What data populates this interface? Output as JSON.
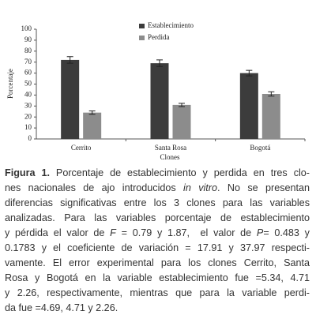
{
  "chart_data": {
    "type": "bar",
    "y_label": "Porcentaje",
    "x_label": "Clones",
    "categories": [
      "Cerrito",
      "Santa Rosa",
      "Bogotá"
    ],
    "series": [
      {
        "name": "Establecimiento",
        "color": "#3c3c3c",
        "values": [
          72,
          69,
          60
        ],
        "errors": [
          3,
          3,
          2.5
        ]
      },
      {
        "name": "Perdida",
        "color": "#8c8c8c",
        "values": [
          24,
          31,
          41
        ],
        "errors": [
          1.5,
          1.5,
          2
        ]
      }
    ],
    "ylim": [
      0,
      100
    ],
    "yticks": [
      0,
      10,
      20,
      30,
      40,
      50,
      60,
      70,
      80,
      90,
      100
    ],
    "legend": "top"
  },
  "caption": {
    "label": "Figura 1.",
    "lines": [
      [
        " Porcentaje de establecimiento y perdida en tres clo-"
      ],
      [
        "nes nacionales de ajo introducidos ",
        {
          "text": "in vitro",
          "italic": true
        },
        ". No se presentan"
      ],
      [
        "diferencias significativas entre los 3 clones para las variables"
      ],
      [
        "analizadas. Para las variables porcentaje de establecimiento"
      ],
      [
        "y pérdida el valor de ",
        {
          "text": "F",
          "italic": true
        },
        " = 0.79 y 1.87,  el valor de ",
        {
          "text": "P",
          "italic": true
        },
        "= 0.483 y"
      ],
      [
        "0.1783 y el coeficiente de variación = 17.91 y 37.97 respecti-"
      ],
      [
        "vamente. El error experimental para los clones Cerrito, Santa"
      ],
      [
        "Rosa y Bogotá en la variable establecimiento fue =5.34, 4.71"
      ],
      [
        "y 2.26, respectivamente, mientras que para la variable perdi-"
      ],
      [
        "da fue =4.69, 4.71 y 2.26."
      ]
    ]
  }
}
